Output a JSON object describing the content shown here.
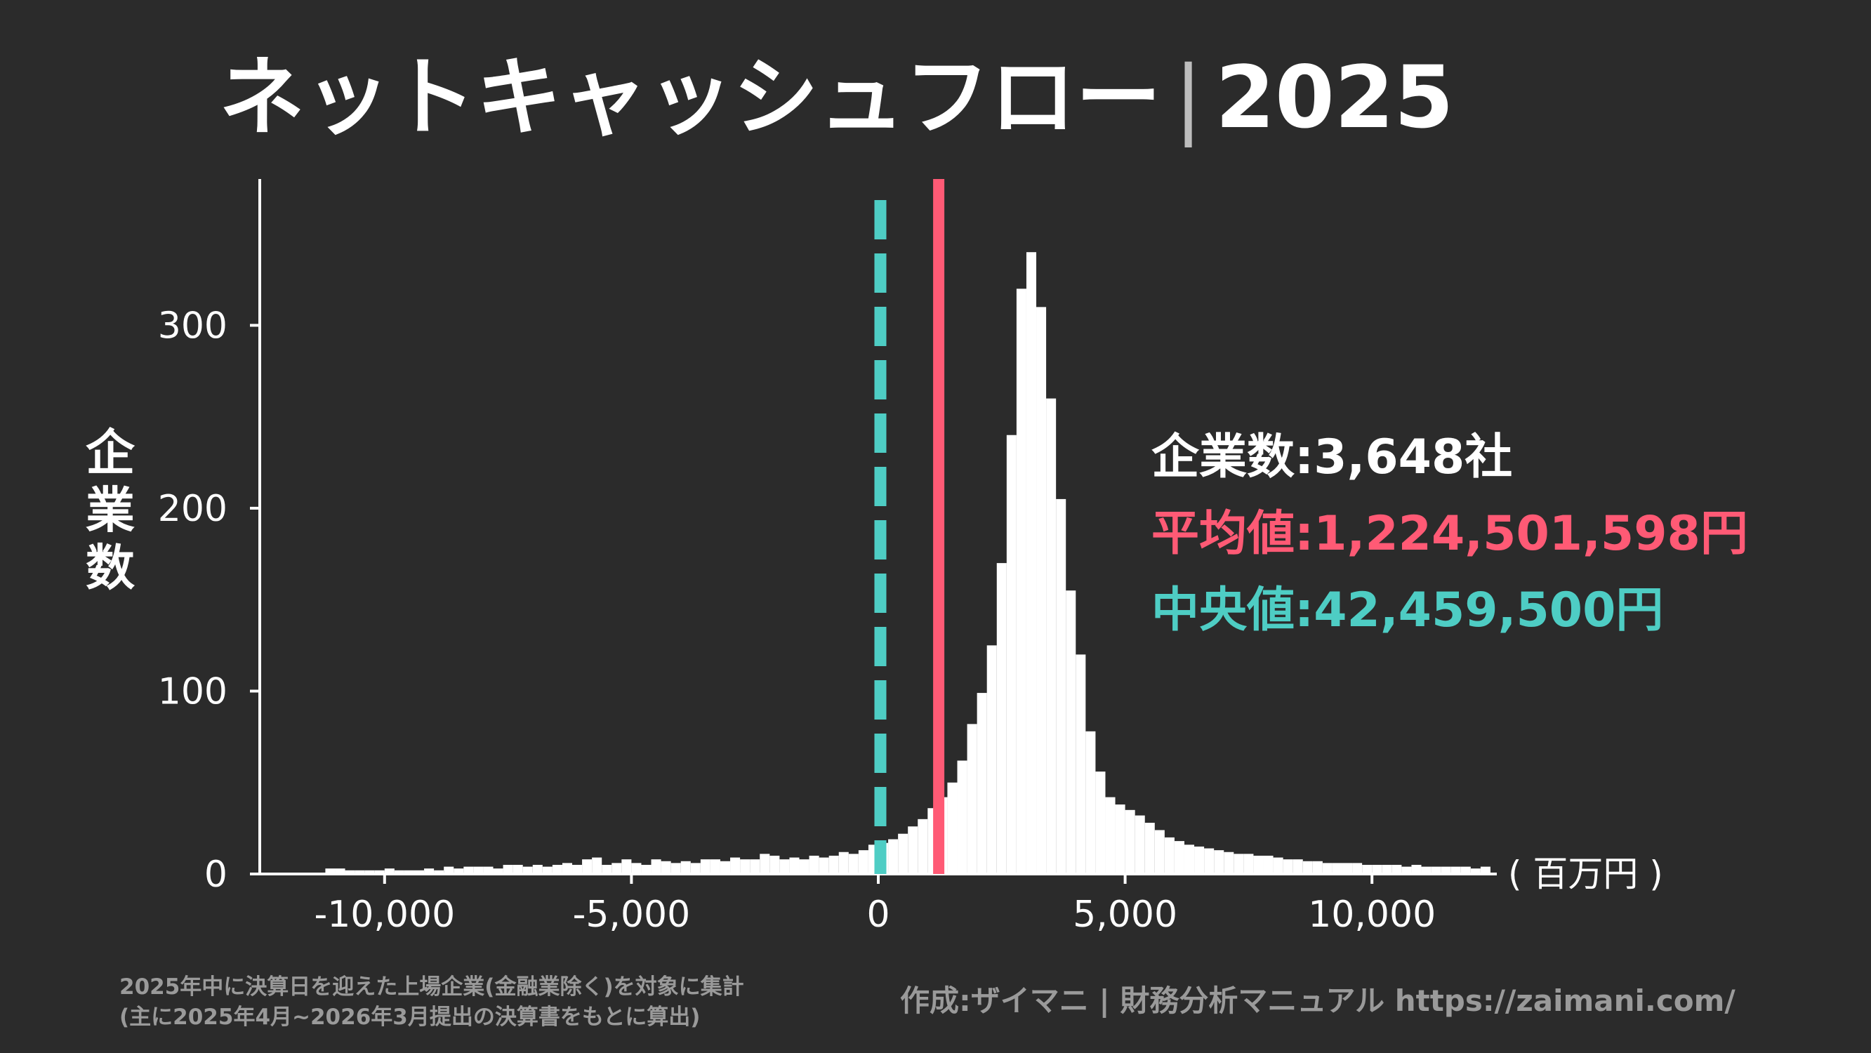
{
  "title": {
    "main": "ネットキャッシュフロー",
    "separator": "|",
    "year": "2025"
  },
  "stats": {
    "count_label": "企業数:",
    "count_value": "3,648社",
    "mean_label": "平均値:",
    "mean_value": "1,224,501,598円",
    "median_label": "中央値:",
    "median_value": "42,459,500円"
  },
  "footnote": {
    "line1": "2025年中に決算日を迎えた上場企業(金融業除く)を対象に集計",
    "line2": "(主に2025年4月~2026年3月提出の決算書をもとに算出)"
  },
  "credit": "作成:ザイマニ | 財務分析マニュアル https://zaimani.com/",
  "colors": {
    "background": "#2b2b2b",
    "bars": "#ffffff",
    "mean_line": "#ff5a75",
    "median_line": "#4ecdc4",
    "text": "#ffffff",
    "footnote": "#9a9a9a"
  },
  "chart_data": {
    "type": "histogram",
    "ylabel": "企業数",
    "xlabel": "",
    "x_unit": "( 百万円 )",
    "xlim": [
      -12500,
      12500
    ],
    "ylim": [
      0,
      380
    ],
    "x_ticks": [
      -10000,
      -5000,
      0,
      5000,
      10000
    ],
    "x_tick_labels": [
      "-10,000",
      "-5,000",
      "0",
      "5,000",
      "10,000"
    ],
    "y_ticks": [
      0,
      100,
      200,
      300
    ],
    "y_tick_labels": [
      "0",
      "100",
      "200",
      "300"
    ],
    "bin_width": 200,
    "bin_start": -11200,
    "counts": [
      3,
      3,
      2,
      2,
      2,
      2,
      3,
      2,
      2,
      2,
      3,
      2,
      4,
      3,
      4,
      4,
      4,
      3,
      5,
      5,
      4,
      5,
      4,
      5,
      6,
      5,
      8,
      9,
      5,
      6,
      8,
      6,
      5,
      8,
      7,
      6,
      7,
      6,
      8,
      8,
      7,
      9,
      8,
      8,
      11,
      10,
      8,
      9,
      8,
      10,
      9,
      10,
      12,
      11,
      13,
      16,
      17,
      19,
      22,
      26,
      30,
      36,
      42,
      50,
      62,
      82,
      99,
      125,
      170,
      240,
      320,
      340,
      310,
      260,
      205,
      155,
      120,
      78,
      56,
      42,
      38,
      35,
      32,
      28,
      24,
      20,
      18,
      16,
      15,
      14,
      13,
      12,
      11,
      11,
      10,
      10,
      9,
      8,
      8,
      7,
      7,
      6,
      6,
      6,
      6,
      5,
      5,
      5,
      5,
      4,
      5,
      4,
      4,
      4,
      4,
      4,
      3,
      4
    ],
    "mean_million_yen": 1224.5,
    "median_million_yen": 42.5,
    "legend": [
      "企業数:3,648社",
      "平均値:1,224,501,598円",
      "中央値:42,459,500円"
    ]
  }
}
